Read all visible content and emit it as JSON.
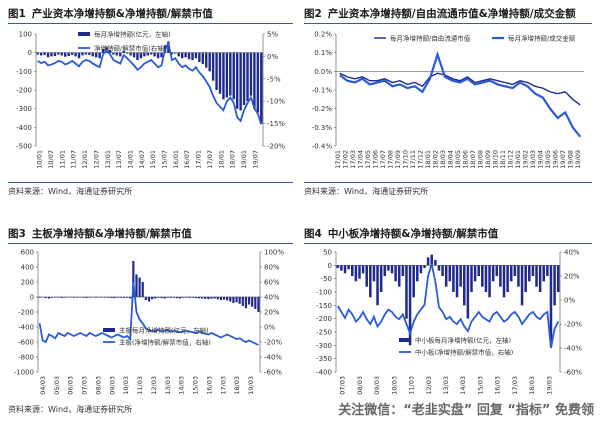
{
  "colors": {
    "bar": "#1f2a8c",
    "line": "#2a5bd7",
    "divider": "#3a5b8c"
  },
  "watermark": "关注微信：“老韭实盘” 回复 “指标” 免费领",
  "chart_data": [
    {
      "id": "p1",
      "num": "图1",
      "title": "产业资本净增持额&净增持额/解禁市值",
      "source": "资料来源：Wind，海通证券研究所",
      "type": "bar",
      "legend": [
        "每月净增持额(亿元，左轴)",
        "净增持额/解禁市值(右轴)"
      ],
      "ylim": [
        -500,
        100
      ],
      "yticks": [
        100,
        0,
        -100,
        -200,
        -300,
        -400,
        -500
      ],
      "ytick_labels": [
        "100",
        "0",
        "-100",
        "-200",
        "-300",
        "-400",
        "-500"
      ],
      "y2lim": [
        -20,
        5
      ],
      "y2ticks": [
        5,
        0,
        -5,
        -10,
        -15,
        -20
      ],
      "y2tick_labels": [
        "5%",
        "0%",
        "-5%",
        "-10%",
        "-15%",
        "-20%"
      ],
      "x_labels": [
        "10/01",
        "10/07",
        "11/01",
        "11/07",
        "12/01",
        "12/07",
        "13/01",
        "13/07",
        "14/01",
        "14/07",
        "15/01",
        "15/07",
        "16/01",
        "16/07",
        "17/01",
        "17/07",
        "18/01",
        "18/07",
        "19/01",
        "19/07"
      ],
      "bars": [
        -10,
        -15,
        -12,
        -25,
        -20,
        -18,
        -10,
        -15,
        -22,
        -18,
        -12,
        -20,
        -30,
        -15,
        -10,
        -12,
        -20,
        -25,
        -30,
        20,
        30,
        15,
        -10,
        -15,
        -20,
        10,
        -5,
        -15,
        -25,
        -40,
        -30,
        -20,
        -15,
        -10,
        -20,
        -30,
        -25,
        40,
        60,
        -10,
        -5,
        -20,
        -30,
        -25,
        -35,
        -40,
        -30,
        -50,
        -60,
        -80,
        -100,
        -150,
        -200,
        -220,
        -250,
        -240,
        -230,
        -250,
        -300,
        -310,
        -280,
        -260,
        -230,
        -300,
        -320,
        -380
      ],
      "line": [
        -1,
        -1.5,
        -1.2,
        -2,
        -1.8,
        -1.5,
        -1,
        -1.2,
        -1.8,
        -1.5,
        -1,
        -1.6,
        -2.2,
        -1.2,
        -0.8,
        -1,
        -1.6,
        -2,
        -2.4,
        0.5,
        1.2,
        0.5,
        -0.8,
        -1.2,
        -1.6,
        0.3,
        -0.4,
        -1.2,
        -2,
        -3,
        -2.4,
        -1.6,
        -1.2,
        -0.8,
        -1.6,
        -2.4,
        -2,
        1.5,
        3,
        -0.8,
        -0.4,
        -1.6,
        -2.4,
        -2,
        -2.8,
        -3.2,
        -2.4,
        -3.6,
        -4.4,
        -5.6,
        -6.8,
        -8.8,
        -10.4,
        -11.2,
        -12,
        -10,
        -9.2,
        -10.4,
        -13.6,
        -14.4,
        -12,
        -10.4,
        -9.2,
        -11.6,
        -12.8,
        -15.2
      ]
    },
    {
      "id": "p2",
      "num": "图2",
      "title": "产业资本净增持额/自由流通市值&净增持额/成交金额",
      "source": "资料来源：Wind，海通证券研究所",
      "type": "line",
      "legend": [
        "每月净增持额/自由流通市值",
        "每月净增持额/成交金额"
      ],
      "ylim": [
        -0.4,
        0.2
      ],
      "yticks": [
        0.2,
        0.1,
        0,
        -0.1,
        -0.2,
        -0.3,
        -0.4
      ],
      "ytick_labels": [
        "0.2%",
        "0.1%",
        "0.0%",
        "-0.1%",
        "-0.2%",
        "-0.3%",
        "-0.4%"
      ],
      "x_labels": [
        "17/01",
        "17/02",
        "17/03",
        "17/04",
        "17/05",
        "17/06",
        "17/07",
        "17/08",
        "17/09",
        "17/10",
        "17/11",
        "17/12",
        "18/01",
        "18/02",
        "18/03",
        "18/04",
        "18/05",
        "18/06",
        "18/07",
        "18/08",
        "18/09",
        "18/10",
        "18/11",
        "18/12",
        "19/01",
        "19/02",
        "19/03",
        "19/04",
        "19/05",
        "19/06",
        "19/07",
        "19/08",
        "19/09"
      ],
      "series": [
        {
          "name": "每月净增持额/自由流通市值",
          "values": [
            -0.01,
            -0.03,
            -0.04,
            -0.03,
            -0.05,
            -0.05,
            -0.04,
            -0.06,
            -0.05,
            -0.07,
            -0.06,
            -0.08,
            -0.03,
            -0.01,
            -0.02,
            -0.04,
            -0.05,
            -0.03,
            -0.06,
            -0.05,
            -0.04,
            -0.05,
            -0.06,
            -0.07,
            -0.05,
            -0.06,
            -0.08,
            -0.09,
            -0.11,
            -0.12,
            -0.11,
            -0.15,
            -0.18
          ]
        },
        {
          "name": "每月净增持额/成交金额",
          "values": [
            -0.02,
            -0.05,
            -0.06,
            -0.04,
            -0.07,
            -0.06,
            -0.05,
            -0.08,
            -0.07,
            -0.09,
            -0.08,
            -0.11,
            -0.04,
            0.09,
            -0.03,
            -0.05,
            -0.06,
            -0.04,
            -0.07,
            -0.06,
            -0.05,
            -0.07,
            -0.08,
            -0.09,
            -0.06,
            -0.08,
            -0.12,
            -0.14,
            -0.2,
            -0.25,
            -0.22,
            -0.3,
            -0.35
          ]
        }
      ]
    },
    {
      "id": "p3",
      "num": "图3",
      "title": "主板净增持额&净增持额/解禁市值",
      "source": "资料来源：Wind，海通证券研究所",
      "type": "bar",
      "legend": [
        "主板每月净增持额(亿元，左轴)",
        "主板(净增持额/解禁市值，右轴)"
      ],
      "ylim": [
        -1000,
        600
      ],
      "yticks": [
        600,
        400,
        200,
        0,
        -200,
        -400,
        -600,
        -800,
        -1000
      ],
      "ytick_labels": [
        "600",
        "400",
        "200",
        "0",
        "-200",
        "-400",
        "-600",
        "-800",
        "-1000"
      ],
      "y2lim": [
        -60,
        100
      ],
      "y2ticks": [
        100,
        80,
        60,
        40,
        20,
        0,
        -20,
        -40,
        -60
      ],
      "y2tick_labels": [
        "100%",
        "80%",
        "60%",
        "40%",
        "20%",
        "0%",
        "-20%",
        "-40%",
        "-60%"
      ],
      "x_labels": [
        "04/03",
        "05/03",
        "06/03",
        "07/03",
        "08/03",
        "09/03",
        "10/03",
        "11/03",
        "12/03",
        "13/03",
        "14/03",
        "15/03",
        "16/03",
        "17/03",
        "18/03",
        "19/03"
      ],
      "bars": [
        -10,
        -5,
        -15,
        -20,
        -10,
        -5,
        -8,
        -12,
        -10,
        -6,
        -5,
        -10,
        -8,
        -6,
        -10,
        -12,
        -8,
        -5,
        -10,
        -6,
        -5,
        -8,
        -10,
        -12,
        -15,
        -8,
        -10,
        -12,
        -10,
        -20,
        480,
        300,
        260,
        200,
        -40,
        -60,
        -30,
        -20,
        -10,
        -15,
        -20,
        -10,
        -12,
        -10,
        -15,
        -20,
        -10,
        -8,
        -12,
        -10,
        -15,
        -18,
        -20,
        -25,
        -30,
        -22,
        -20,
        -30,
        -40,
        -35,
        -45,
        -60,
        -80,
        -70,
        -90,
        -120,
        -150,
        -100,
        -130,
        -160,
        -200
      ],
      "line": [
        5,
        -18,
        -20,
        -10,
        -12,
        -15,
        -8,
        -10,
        -12,
        -8,
        -10,
        -12,
        -10,
        -8,
        -10,
        -12,
        -8,
        -10,
        -12,
        -10,
        -8,
        -10,
        -12,
        -14,
        -12,
        -10,
        -12,
        -14,
        -12,
        -16,
        60,
        20,
        10,
        5,
        -2,
        -4,
        -6,
        -5,
        -4,
        -6,
        -5,
        -4,
        -6,
        -5,
        -6,
        -7,
        -6,
        -5,
        -6,
        -7,
        -8,
        -6,
        -8,
        -9,
        -10,
        -8,
        -10,
        -12,
        -14,
        -12,
        -10,
        -12,
        -14,
        -16,
        -15,
        -18,
        -20,
        -18,
        -20,
        -22,
        -24
      ]
    },
    {
      "id": "p4",
      "num": "图4",
      "title": "中小板净增持额&净增持额/解禁市值",
      "source": "资料来源：Wind，海通证券研究所",
      "type": "bar",
      "legend": [
        "中小板每月净增持额(亿元，左轴)",
        "中小板(净增持额/解禁市值，右轴)"
      ],
      "ylim": [
        -400,
        50
      ],
      "yticks": [
        50,
        0,
        -50,
        -100,
        -150,
        -200,
        -250,
        -300,
        -350,
        -400
      ],
      "ytick_labels": [
        "50",
        "0",
        "-50",
        "-100",
        "-150",
        "-200",
        "-250",
        "-300",
        "-350",
        "-400"
      ],
      "y2lim": [
        -60,
        40
      ],
      "y2ticks": [
        40,
        20,
        0,
        -20,
        -40,
        -60
      ],
      "y2tick_labels": [
        "40%",
        "20%",
        "0%",
        "-20%",
        "-40%",
        "-60%"
      ],
      "x_labels": [
        "07/03",
        "08/03",
        "09/03",
        "10/03",
        "11/03",
        "12/03",
        "13/03",
        "14/03",
        "15/03",
        "16/03",
        "17/03",
        "18/03",
        "19/03"
      ],
      "bars": [
        -10,
        -20,
        -30,
        -15,
        -40,
        -60,
        -50,
        -30,
        -80,
        -120,
        -60,
        -150,
        -100,
        -40,
        -20,
        -30,
        -60,
        -80,
        -40,
        -200,
        -300,
        -120,
        -60,
        -30,
        -10,
        30,
        40,
        20,
        -20,
        -40,
        -80,
        -60,
        -100,
        -120,
        -80,
        -150,
        -200,
        -100,
        -60,
        -40,
        -80,
        -100,
        -120,
        -60,
        -40,
        -80,
        -120,
        -100,
        -60,
        -40,
        -80,
        -150,
        -100,
        -60,
        -40,
        -80,
        -100,
        -60,
        -40,
        -300,
        -150,
        -100
      ],
      "line": [
        -5,
        -10,
        -15,
        -8,
        -12,
        -18,
        -15,
        -10,
        -16,
        -20,
        -14,
        -22,
        -18,
        -12,
        -8,
        -10,
        -14,
        -16,
        -12,
        -20,
        -28,
        -18,
        -12,
        -8,
        -4,
        20,
        30,
        15,
        -6,
        -10,
        -16,
        -14,
        -18,
        -20,
        -16,
        -22,
        -26,
        -18,
        -14,
        -10,
        -14,
        -16,
        -18,
        -12,
        -10,
        -14,
        -18,
        -16,
        -12,
        -10,
        -14,
        -20,
        -16,
        -12,
        -10,
        -14,
        -16,
        -12,
        -10,
        -40,
        -24,
        -18
      ]
    }
  ]
}
